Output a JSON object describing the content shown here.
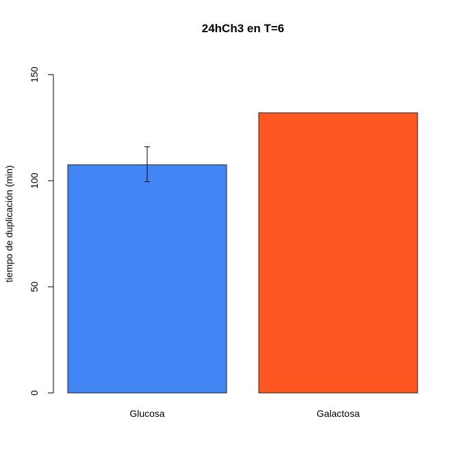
{
  "chart_data": {
    "type": "bar",
    "title": "24hCh3 en T=6",
    "xlabel": "",
    "ylabel": "tiempo de duplicación (min)",
    "categories": [
      "Glucosa",
      "Galactosa"
    ],
    "values": [
      107.5,
      132
    ],
    "error_bars": [
      [
        99.5,
        116
      ],
      null
    ],
    "colors": [
      "#4285f4",
      "#ff5722"
    ],
    "ylim": [
      0,
      150
    ],
    "yticks": [
      0,
      50,
      100,
      150
    ],
    "grid": false,
    "legend": "none"
  }
}
